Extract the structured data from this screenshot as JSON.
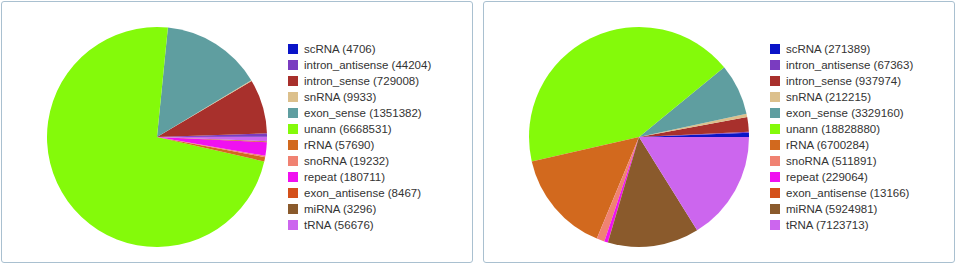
{
  "chart_data": [
    {
      "type": "pie",
      "categories": [
        "scRNA (4706)",
        "intron_antisense (44204)",
        "intron_sense (729008)",
        "snRNA (9933)",
        "exon_sense (1351382)",
        "unann (6668531)",
        "rRNA (57690)",
        "snoRNA (19232)",
        "repeat (180711)",
        "exon_antisense (8467)",
        "miRNA (3296)",
        "tRNA (56676)"
      ],
      "values": [
        4706,
        44204,
        729008,
        9933,
        1351382,
        6668531,
        57690,
        19232,
        180711,
        8467,
        3296,
        56676
      ],
      "colors": [
        "#0a14c8",
        "#7a3cc0",
        "#a8302c",
        "#dcc08c",
        "#5f9ea0",
        "#84fa0a",
        "#d2691e",
        "#f08272",
        "#f010f0",
        "#d4501a",
        "#8a5a2c",
        "#cc66ee"
      ]
    },
    {
      "type": "pie",
      "categories": [
        "scRNA (271389)",
        "intron_antisense (67363)",
        "intron_sense (937974)",
        "snRNA (212215)",
        "exon_sense (3329160)",
        "unann (18828880)",
        "rRNA (6700284)",
        "snoRNA (511891)",
        "repeat (229064)",
        "exon_antisense (13166)",
        "miRNA (5924981)",
        "tRNA (7123713)"
      ],
      "values": [
        271389,
        67363,
        937974,
        212215,
        3329160,
        18828880,
        6700284,
        511891,
        229064,
        13166,
        5924981,
        7123713
      ],
      "colors": [
        "#0a14c8",
        "#7a3cc0",
        "#a8302c",
        "#dcc08c",
        "#5f9ea0",
        "#84fa0a",
        "#d2691e",
        "#f08272",
        "#f010f0",
        "#d4501a",
        "#8a5a2c",
        "#cc66ee"
      ]
    }
  ]
}
